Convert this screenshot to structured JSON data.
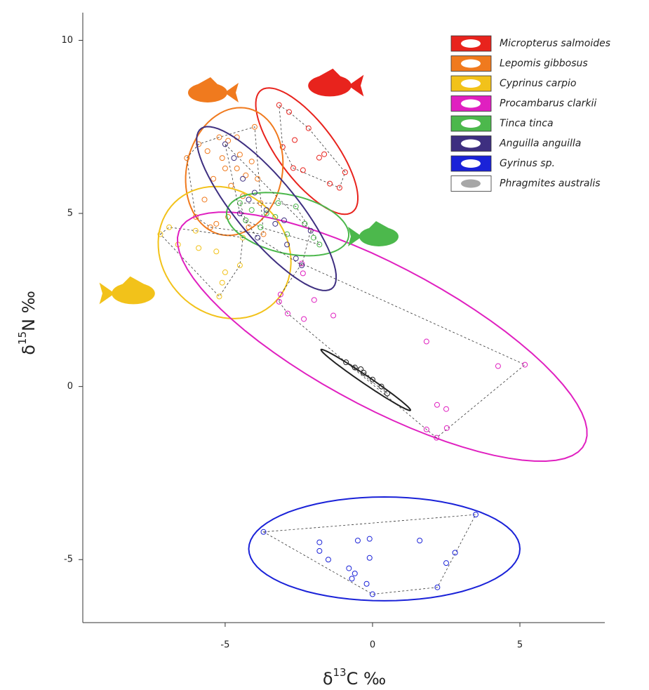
{
  "chart_data": {
    "type": "scatter",
    "x_label": {
      "prefix": "δ",
      "sup": "13",
      "suffix": "C ‰"
    },
    "y_label": {
      "prefix": "δ",
      "sup": "15",
      "suffix": "N ‰"
    },
    "xlim": [
      -9.83,
      7.88
    ],
    "ylim": [
      -6.82,
      10.8
    ],
    "xticks": [
      -5,
      0,
      5
    ],
    "yticks": [
      -5,
      0,
      5,
      10
    ],
    "series": [
      {
        "name": "Micropterus salmoides",
        "color": "#e8231d",
        "x": [
          -3.17,
          -2.83,
          -2.17,
          -2.64,
          -1.64,
          -2.36,
          -0.93,
          -1.45,
          -1.12,
          -3.05,
          -1.81,
          -2.69
        ],
        "y": [
          8.13,
          7.93,
          7.46,
          7.12,
          6.71,
          6.25,
          6.19,
          5.86,
          5.74,
          6.92,
          6.61,
          6.31
        ],
        "ellipse": {
          "cx": -2.23,
          "cy": 6.8,
          "a": 2.35,
          "b": 0.9,
          "angle": -47
        }
      },
      {
        "name": "Lepomis gibbosus",
        "color": "#f07a1e",
        "x": [
          -6.3,
          -5.9,
          -5.6,
          -5.2,
          -4.9,
          -4.6,
          -4.5,
          -4.1,
          -3.9,
          -4.3,
          -5.0,
          -5.4,
          -4.8,
          -4.4,
          -3.8,
          -5.7,
          -6.0,
          -5.3,
          -4.9,
          -4.2,
          -3.7,
          -5.5,
          -4.6,
          -4.0,
          -5.1
        ],
        "y": [
          6.6,
          7.0,
          6.8,
          7.2,
          7.1,
          7.2,
          6.7,
          6.5,
          6.0,
          6.1,
          6.3,
          6.0,
          5.8,
          5.5,
          5.3,
          5.4,
          4.9,
          4.7,
          4.9,
          4.6,
          4.4,
          4.6,
          6.3,
          7.5,
          6.6
        ],
        "ellipse": {
          "cx": -4.69,
          "cy": 6.21,
          "a": 1.89,
          "b": 1.6,
          "angle": 66
        }
      },
      {
        "name": "Cyprinus carpio",
        "color": "#f2c21a",
        "x": [
          -7.2,
          -6.6,
          -6.9,
          -6.0,
          -5.3,
          -5.0,
          -5.1,
          -4.5,
          -5.2,
          -5.9,
          -4.4
        ],
        "y": [
          4.4,
          4.1,
          4.6,
          4.5,
          3.9,
          3.3,
          3.0,
          3.5,
          2.6,
          4.0,
          4.3
        ],
        "ellipse": {
          "cx": -5.02,
          "cy": 3.87,
          "a": 2.3,
          "b": 1.85,
          "angle": -20
        }
      },
      {
        "name": "Procambarus clarkii",
        "color": "#e020c0",
        "x": [
          -3.12,
          -3.17,
          -2.88,
          -2.33,
          -1.98,
          -1.33,
          -2.36,
          1.83,
          4.26,
          5.17,
          2.19,
          2.5,
          1.83,
          2.17,
          2.52,
          -2.4
        ],
        "y": [
          2.66,
          2.45,
          2.11,
          1.95,
          2.5,
          2.05,
          3.27,
          1.3,
          0.59,
          0.63,
          -0.53,
          -0.65,
          -1.24,
          -1.48,
          -1.2,
          3.55
        ],
        "ellipse": {
          "cx": 0.33,
          "cy": 1.44,
          "a": 7.54,
          "b": 2.1,
          "angle": -23.8
        }
      },
      {
        "name": "Tinca tinca",
        "color": "#4cb84c",
        "x": [
          -4.5,
          -4.1,
          -3.6,
          -3.2,
          -2.6,
          -2.3,
          -2.0,
          -2.9,
          -3.8,
          -4.3,
          -1.8,
          -3.3
        ],
        "y": [
          5.3,
          5.1,
          5.0,
          5.3,
          5.2,
          4.7,
          4.3,
          4.4,
          4.6,
          4.8,
          4.1,
          4.9
        ],
        "ellipse": {
          "cx": -2.88,
          "cy": 4.69,
          "a": 2.1,
          "b": 0.85,
          "angle": -10
        }
      },
      {
        "name": "Anguilla anguilla",
        "color": "#3e2f80",
        "x": [
          -5.0,
          -4.7,
          -4.4,
          -4.0,
          -3.6,
          -3.3,
          -2.9,
          -2.6,
          -2.4,
          -4.5,
          -3.9,
          -3.0,
          -2.1,
          -4.2
        ],
        "y": [
          7.0,
          6.6,
          6.0,
          5.6,
          5.1,
          4.7,
          4.1,
          3.7,
          3.5,
          5.0,
          4.3,
          4.8,
          4.5,
          5.4
        ],
        "ellipse": {
          "cx": -3.6,
          "cy": 5.14,
          "a": 3.21,
          "b": 0.95,
          "angle": -45
        }
      },
      {
        "name": "Gyrinus sp.",
        "color": "#1a22d8",
        "x": [
          -3.7,
          -1.8,
          -1.8,
          -1.5,
          -0.5,
          -0.1,
          -0.8,
          -0.6,
          -0.7,
          -0.2,
          0.0,
          -0.1,
          1.6,
          2.2,
          2.5,
          2.8,
          3.5
        ],
        "y": [
          -4.2,
          -4.5,
          -4.75,
          -5.0,
          -4.45,
          -4.4,
          -5.25,
          -5.4,
          -5.55,
          -5.7,
          -6.0,
          -4.95,
          -4.45,
          -5.8,
          -5.1,
          -4.8,
          -3.7
        ],
        "ellipse": {
          "cx": 0.4,
          "cy": -4.69,
          "a": 4.6,
          "b": 1.5,
          "angle": 0
        }
      },
      {
        "name": "Phragmites australis",
        "color": "#222222",
        "x": [
          -0.9,
          -0.6,
          -0.3,
          0.0,
          0.3,
          0.5,
          -0.4
        ],
        "y": [
          0.7,
          0.55,
          0.4,
          0.2,
          0.0,
          -0.2,
          0.5
        ],
        "ellipse": {
          "cx": -0.23,
          "cy": 0.19,
          "a": 1.75,
          "b": 0.12,
          "angle": -30
        }
      }
    ]
  }
}
